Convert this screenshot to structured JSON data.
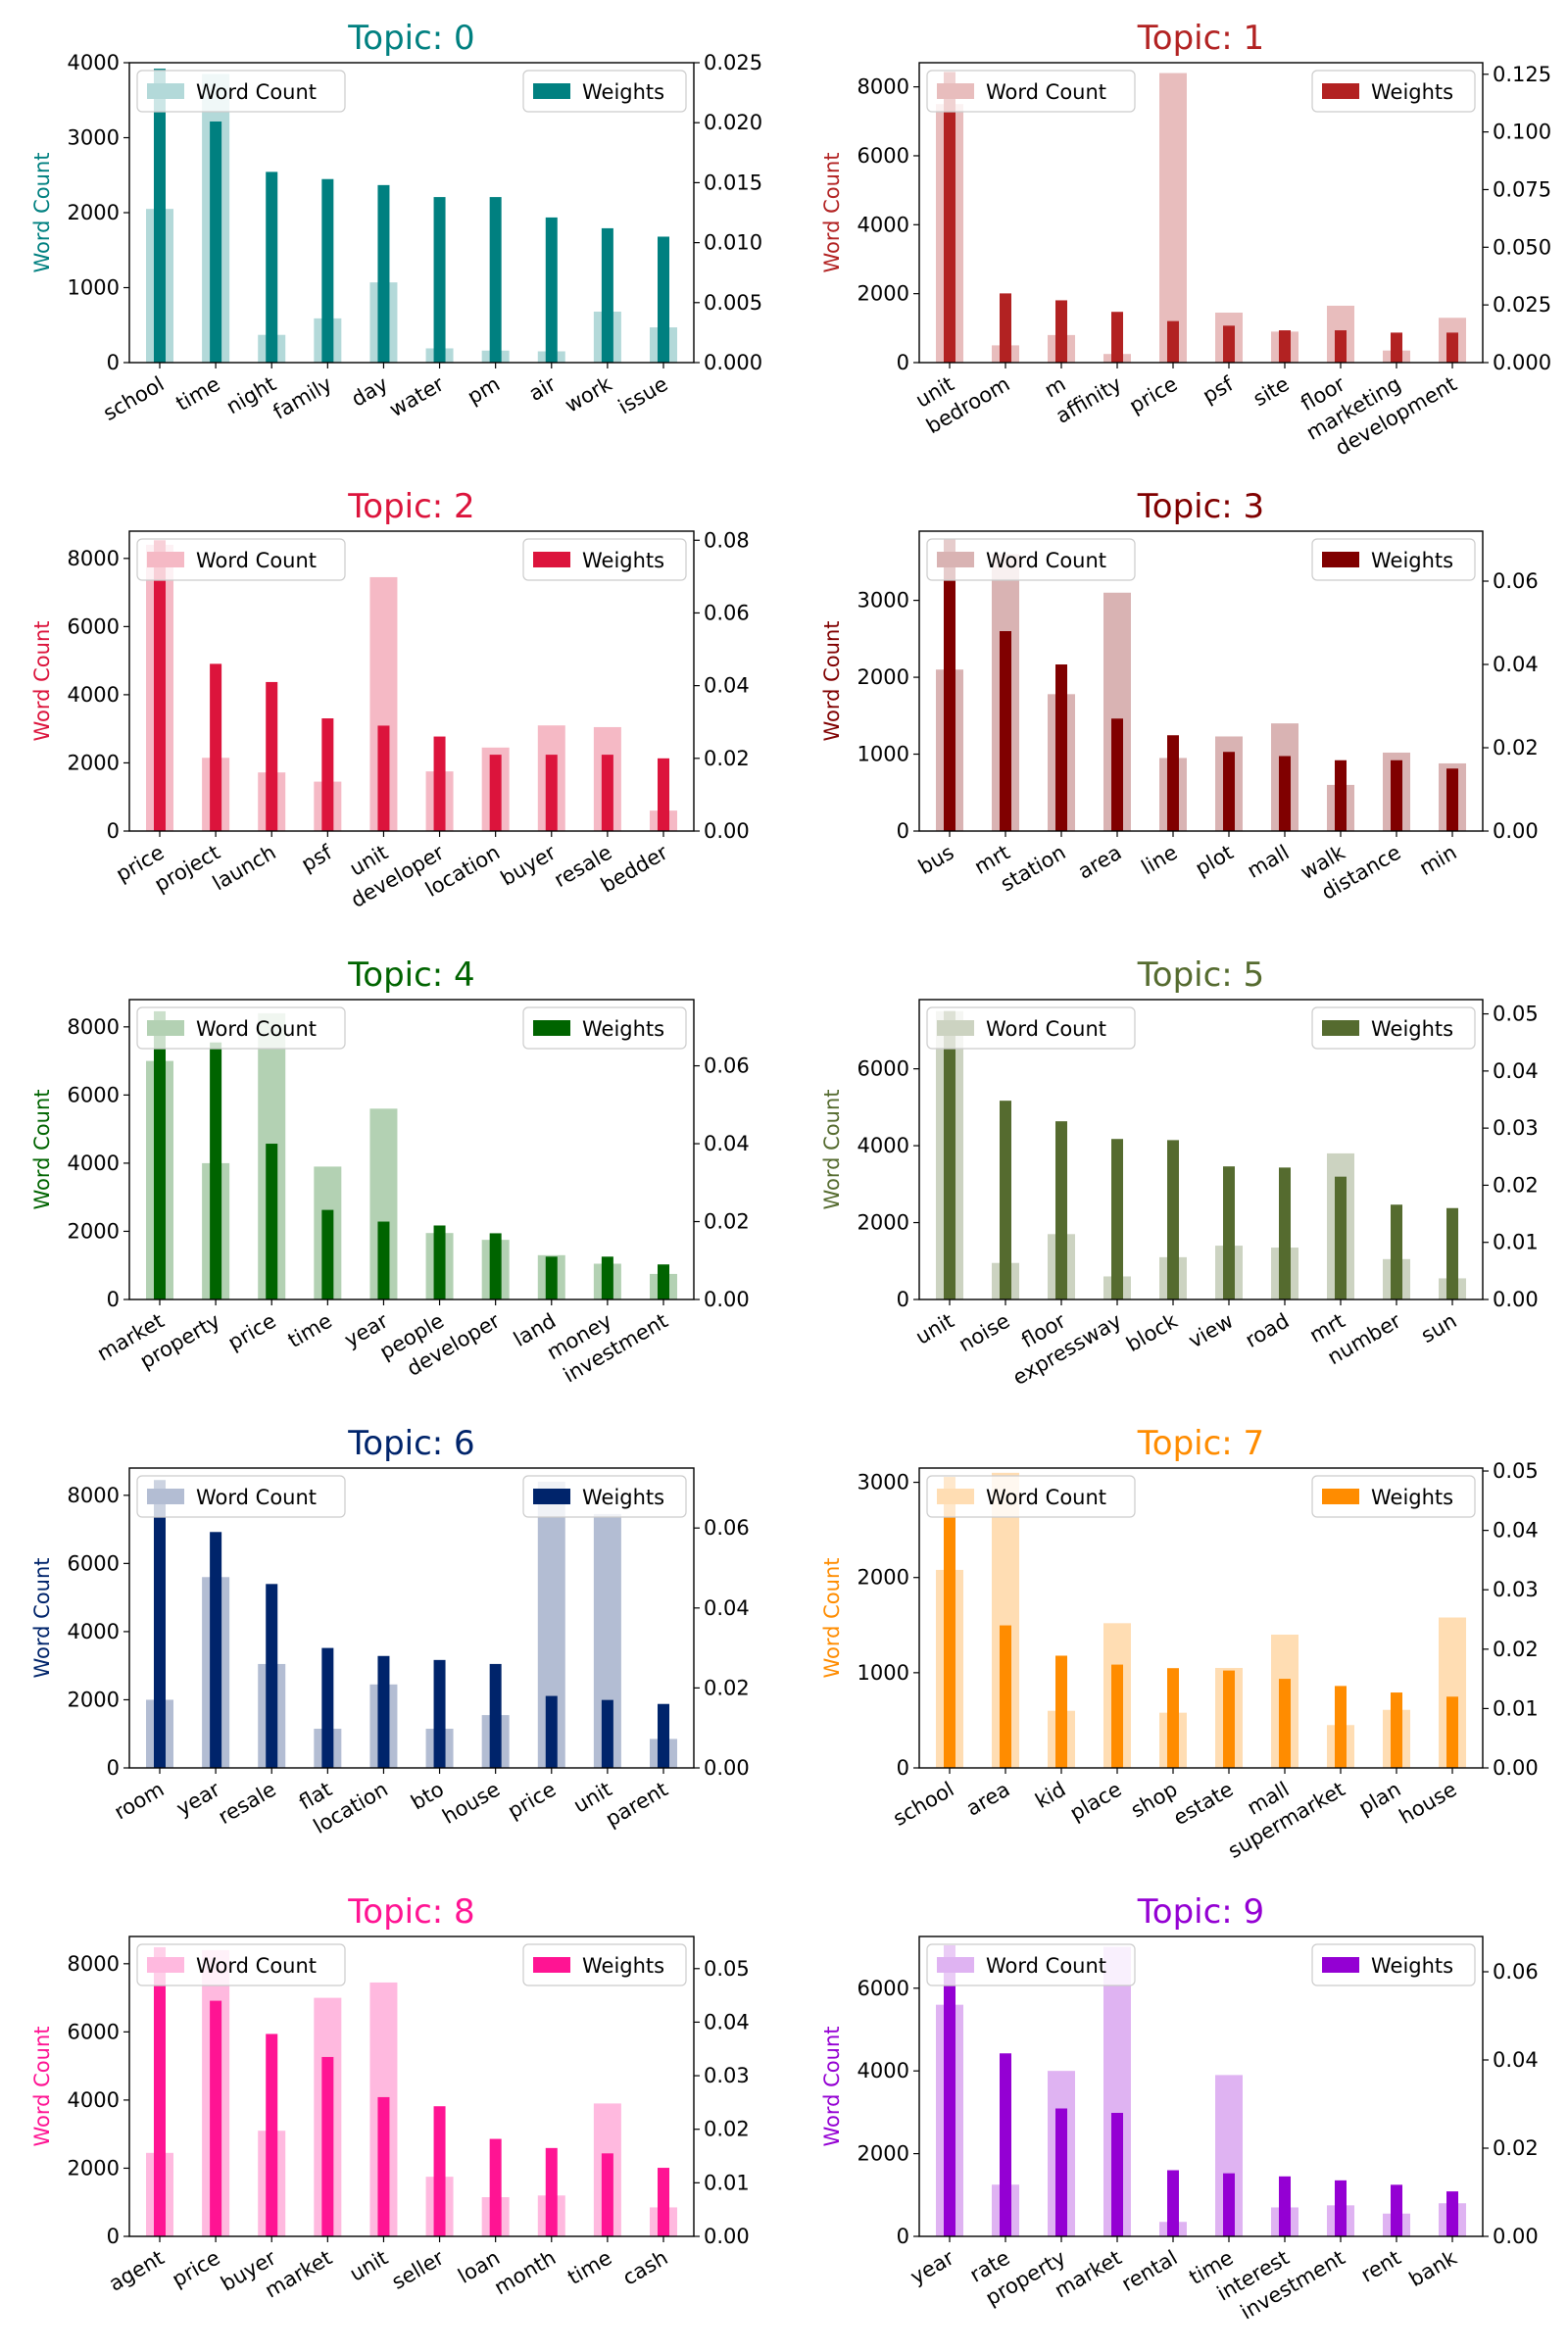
{
  "chart_data": [
    {
      "type": "bar",
      "title": "Topic: 0",
      "color": "#008080",
      "ylabel": "Word Count",
      "legend_left": "Word Count",
      "legend_right": "Weights",
      "legend_placement": [
        "upper-left",
        "upper-right"
      ],
      "categories": [
        "school",
        "time",
        "night",
        "family",
        "day",
        "water",
        "pm",
        "air",
        "work",
        "issue"
      ],
      "counts": [
        2050,
        3850,
        370,
        590,
        1070,
        190,
        160,
        150,
        680,
        470
      ],
      "weights": [
        0.0245,
        0.0201,
        0.0159,
        0.0153,
        0.0148,
        0.0138,
        0.0138,
        0.0121,
        0.0112,
        0.0105
      ],
      "ylim_left": [
        0,
        4000
      ],
      "ylim_right": [
        0,
        0.025
      ],
      "yticks_left": [
        "0",
        "1000",
        "2000",
        "3000",
        "4000"
      ],
      "yticks_right": [
        "0.000",
        "0.005",
        "0.010",
        "0.015",
        "0.020",
        "0.025"
      ]
    },
    {
      "type": "bar",
      "title": "Topic: 1",
      "color": "#b22222",
      "ylabel": "Word Count",
      "legend_left": "Word Count",
      "legend_right": "Weights",
      "legend_placement": [
        "upper-left",
        "upper-right"
      ],
      "categories": [
        "unit",
        "bedroom",
        "m",
        "affinity",
        "price",
        "psf",
        "site",
        "floor",
        "marketing",
        "development"
      ],
      "counts": [
        7500,
        500,
        800,
        250,
        8400,
        1450,
        900,
        1650,
        350,
        1300
      ],
      "weights": [
        0.126,
        0.03,
        0.027,
        0.022,
        0.018,
        0.016,
        0.014,
        0.014,
        0.013,
        0.013
      ],
      "ylim_left": [
        0,
        8700
      ],
      "ylim_right": [
        0,
        0.13
      ],
      "yticks_left": [
        "0",
        "2000",
        "4000",
        "6000",
        "8000"
      ],
      "yticks_right": [
        "0.000",
        "0.025",
        "0.050",
        "0.075",
        "0.100",
        "0.125"
      ]
    },
    {
      "type": "bar",
      "title": "Topic: 2",
      "color": "#dc143c",
      "ylabel": "Word Count",
      "legend_left": "Word Count",
      "legend_right": "Weights",
      "legend_placement": [
        "upper-left",
        "upper-right"
      ],
      "categories": [
        "price",
        "project",
        "launch",
        "psf",
        "unit",
        "developer",
        "location",
        "buyer",
        "resale",
        "bedder"
      ],
      "counts": [
        8400,
        2150,
        1720,
        1450,
        7450,
        1750,
        2450,
        3100,
        3050,
        600
      ],
      "weights": [
        0.08,
        0.046,
        0.041,
        0.031,
        0.029,
        0.026,
        0.021,
        0.021,
        0.021,
        0.02
      ],
      "ylim_left": [
        0,
        8800
      ],
      "ylim_right": [
        0,
        0.0825
      ],
      "yticks_left": [
        "0",
        "2000",
        "4000",
        "6000",
        "8000"
      ],
      "yticks_right": [
        "0.00",
        "0.02",
        "0.04",
        "0.06",
        "0.08"
      ]
    },
    {
      "type": "bar",
      "title": "Topic: 3",
      "color": "#800000",
      "ylabel": "Word Count",
      "legend_left": "Word Count",
      "legend_right": "Weights",
      "legend_placement": [
        "upper-left",
        "upper-right"
      ],
      "categories": [
        "bus",
        "mrt",
        "station",
        "area",
        "line",
        "plot",
        "mall",
        "walk",
        "distance",
        "min"
      ],
      "counts": [
        2100,
        3600,
        1780,
        3100,
        950,
        1230,
        1400,
        600,
        1020,
        880
      ],
      "weights": [
        0.07,
        0.048,
        0.04,
        0.027,
        0.023,
        0.019,
        0.018,
        0.017,
        0.017,
        0.015
      ],
      "ylim_left": [
        0,
        3900
      ],
      "ylim_right": [
        0,
        0.072
      ],
      "yticks_left": [
        "0",
        "1000",
        "2000",
        "3000"
      ],
      "yticks_right": [
        "0.00",
        "0.02",
        "0.04",
        "0.06"
      ]
    },
    {
      "type": "bar",
      "title": "Topic: 4",
      "color": "#006400",
      "ylabel": "Word Count",
      "legend_left": "Word Count",
      "legend_right": "Weights",
      "legend_placement": [
        "upper-left",
        "upper-right"
      ],
      "categories": [
        "market",
        "property",
        "price",
        "time",
        "year",
        "people",
        "developer",
        "land",
        "money",
        "investment"
      ],
      "counts": [
        7000,
        4000,
        8400,
        3900,
        5600,
        1950,
        1750,
        1300,
        1050,
        750
      ],
      "weights": [
        0.074,
        0.066,
        0.04,
        0.023,
        0.02,
        0.019,
        0.017,
        0.011,
        0.011,
        0.009
      ],
      "ylim_left": [
        0,
        8800
      ],
      "ylim_right": [
        0,
        0.077
      ],
      "yticks_left": [
        "0",
        "2000",
        "4000",
        "6000",
        "8000"
      ],
      "yticks_right": [
        "0.00",
        "0.02",
        "0.04",
        "0.06"
      ]
    },
    {
      "type": "bar",
      "title": "Topic: 5",
      "color": "#556b2f",
      "ylabel": "Word Count",
      "legend_left": "Word Count",
      "legend_right": "Weights",
      "legend_placement": [
        "upper-left",
        "upper-right"
      ],
      "categories": [
        "unit",
        "noise",
        "floor",
        "expressway",
        "block",
        "view",
        "road",
        "mrt",
        "number",
        "sun"
      ],
      "counts": [
        7500,
        950,
        1700,
        600,
        1100,
        1400,
        1350,
        3800,
        1050,
        550
      ],
      "weights": [
        0.0505,
        0.0348,
        0.0312,
        0.0281,
        0.0279,
        0.0233,
        0.0231,
        0.0215,
        0.0166,
        0.016
      ],
      "ylim_left": [
        0,
        7800
      ],
      "ylim_right": [
        0,
        0.0525
      ],
      "yticks_left": [
        "0",
        "2000",
        "4000",
        "6000"
      ],
      "yticks_right": [
        "0.00",
        "0.01",
        "0.02",
        "0.03",
        "0.04",
        "0.05"
      ]
    },
    {
      "type": "bar",
      "title": "Topic: 6",
      "color": "#00246b",
      "ylabel": "Word Count",
      "legend_left": "Word Count",
      "legend_right": "Weights",
      "legend_placement": [
        "upper-left",
        "upper-right"
      ],
      "categories": [
        "room",
        "year",
        "resale",
        "flat",
        "location",
        "bto",
        "house",
        "price",
        "unit",
        "parent"
      ],
      "counts": [
        2000,
        5600,
        3050,
        1150,
        2450,
        1150,
        1550,
        8400,
        7450,
        850
      ],
      "weights": [
        0.072,
        0.059,
        0.046,
        0.03,
        0.028,
        0.027,
        0.026,
        0.018,
        0.017,
        0.016
      ],
      "ylim_left": [
        0,
        8800
      ],
      "ylim_right": [
        0,
        0.075
      ],
      "yticks_left": [
        "0",
        "2000",
        "4000",
        "6000",
        "8000"
      ],
      "yticks_right": [
        "0.00",
        "0.02",
        "0.04",
        "0.06"
      ]
    },
    {
      "type": "bar",
      "title": "Topic: 7",
      "color": "#ff8c00",
      "ylabel": "Word Count",
      "legend_left": "Word Count",
      "legend_right": "Weights",
      "legend_placement": [
        "upper-left",
        "upper-right"
      ],
      "categories": [
        "school",
        "area",
        "kid",
        "place",
        "shop",
        "estate",
        "mall",
        "supermarket",
        "plan",
        "house"
      ],
      "counts": [
        2080,
        3100,
        600,
        1520,
        580,
        1050,
        1400,
        450,
        610,
        1580
      ],
      "weights": [
        0.049,
        0.024,
        0.0189,
        0.0174,
        0.0168,
        0.0164,
        0.015,
        0.0138,
        0.0127,
        0.012
      ],
      "ylim_left": [
        0,
        3150
      ],
      "ylim_right": [
        0,
        0.0505
      ],
      "yticks_left": [
        "0",
        "1000",
        "2000",
        "3000"
      ],
      "yticks_right": [
        "0.00",
        "0.01",
        "0.02",
        "0.03",
        "0.04",
        "0.05"
      ]
    },
    {
      "type": "bar",
      "title": "Topic: 8",
      "color": "#ff1493",
      "ylabel": "Word Count",
      "legend_left": "Word Count",
      "legend_right": "Weights",
      "legend_placement": [
        "upper-left",
        "upper-right"
      ],
      "categories": [
        "agent",
        "price",
        "buyer",
        "market",
        "unit",
        "seller",
        "loan",
        "month",
        "time",
        "cash"
      ],
      "counts": [
        2450,
        8400,
        3100,
        7000,
        7450,
        1750,
        1150,
        1200,
        3900,
        850
      ],
      "weights": [
        0.054,
        0.044,
        0.0378,
        0.0335,
        0.026,
        0.0243,
        0.0182,
        0.0165,
        0.0155,
        0.0128
      ],
      "ylim_left": [
        0,
        8800
      ],
      "ylim_right": [
        0,
        0.056
      ],
      "yticks_left": [
        "0",
        "2000",
        "4000",
        "6000",
        "8000"
      ],
      "yticks_right": [
        "0.00",
        "0.01",
        "0.02",
        "0.03",
        "0.04",
        "0.05"
      ]
    },
    {
      "type": "bar",
      "title": "Topic: 9",
      "color": "#9400d3",
      "ylabel": "Word Count",
      "legend_left": "Word Count",
      "legend_right": "Weights",
      "legend_placement": [
        "upper-left",
        "upper-right"
      ],
      "categories": [
        "year",
        "rate",
        "property",
        "market",
        "rental",
        "time",
        "interest",
        "investment",
        "rent",
        "bank"
      ],
      "counts": [
        5600,
        1250,
        4000,
        7000,
        350,
        3900,
        700,
        750,
        550,
        800
      ],
      "weights": [
        0.066,
        0.0415,
        0.029,
        0.028,
        0.015,
        0.0143,
        0.0136,
        0.0127,
        0.0117,
        0.0102
      ],
      "ylim_left": [
        0,
        7250
      ],
      "ylim_right": [
        0,
        0.068
      ],
      "yticks_left": [
        "0",
        "2000",
        "4000",
        "6000"
      ],
      "yticks_right": [
        "0.00",
        "0.02",
        "0.04",
        "0.06"
      ]
    }
  ]
}
